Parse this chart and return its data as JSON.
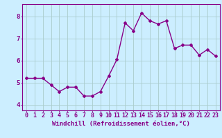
{
  "x": [
    0,
    1,
    2,
    3,
    4,
    5,
    6,
    7,
    8,
    9,
    10,
    11,
    12,
    13,
    14,
    15,
    16,
    17,
    18,
    19,
    20,
    21,
    22,
    23
  ],
  "y": [
    5.2,
    5.2,
    5.2,
    4.9,
    4.6,
    4.8,
    4.8,
    4.4,
    4.4,
    4.6,
    5.3,
    6.05,
    7.7,
    7.35,
    8.15,
    7.8,
    7.65,
    7.8,
    6.55,
    6.7,
    6.7,
    6.25,
    6.5,
    6.2
  ],
  "line_color": "#880088",
  "marker": "D",
  "marker_size": 2.0,
  "bg_color": "#cceeff",
  "grid_color": "#aacccc",
  "ylabel_ticks": [
    4,
    5,
    6,
    7,
    8
  ],
  "xlabel": "Windchill (Refroidissement éolien,°C)",
  "xlim": [
    -0.5,
    23.5
  ],
  "ylim": [
    3.75,
    8.55
  ],
  "xlabel_fontsize": 6.5,
  "tick_fontsize": 6.0,
  "line_width": 1.0
}
